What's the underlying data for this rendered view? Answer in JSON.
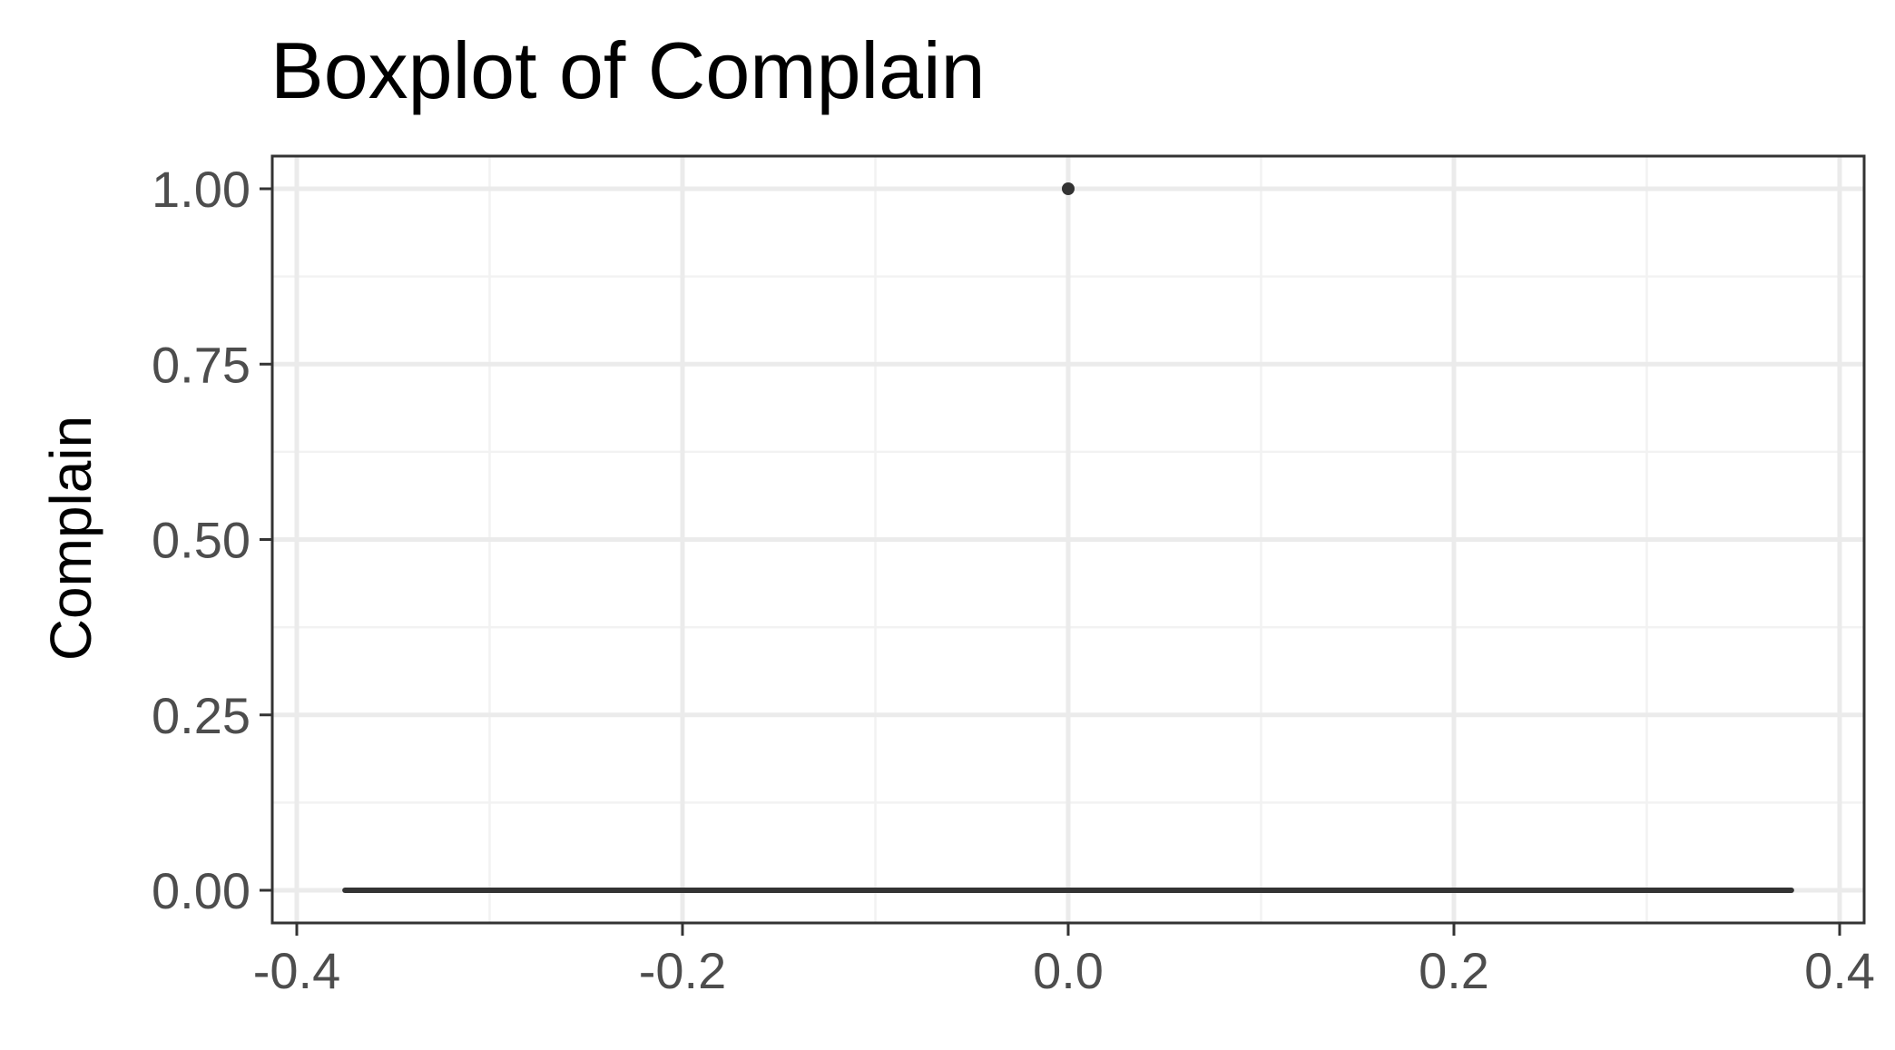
{
  "chart_data": {
    "type": "boxplot",
    "title": "Boxplot of Complain",
    "xlabel": "",
    "ylabel": "Complain",
    "xlim": [
      -0.4,
      0.4
    ],
    "ylim": [
      0.0,
      1.0
    ],
    "x_ticks": [
      -0.4,
      -0.2,
      0.0,
      0.2,
      0.4
    ],
    "x_tick_labels": [
      "-0.4",
      "-0.2",
      "0.0",
      "0.2",
      "0.4"
    ],
    "y_ticks": [
      0.0,
      0.25,
      0.5,
      0.75,
      1.0
    ],
    "y_tick_labels": [
      "0.00",
      "0.25",
      "0.50",
      "0.75",
      "1.00"
    ],
    "grid": true,
    "box": {
      "x_center": 0.0,
      "x_left": -0.375,
      "x_right": 0.375,
      "min": 0.0,
      "q1": 0.0,
      "median": 0.0,
      "q3": 0.0,
      "max": 0.0
    },
    "outliers": [
      {
        "x": 0.0,
        "y": 1.0
      }
    ],
    "colors": {
      "panel_border": "#333333",
      "grid_major": "#ebebeb",
      "grid_minor": "#f2f2f2",
      "box_line": "#333333",
      "outlier": "#333333",
      "tick_text": "#4d4d4d"
    }
  }
}
